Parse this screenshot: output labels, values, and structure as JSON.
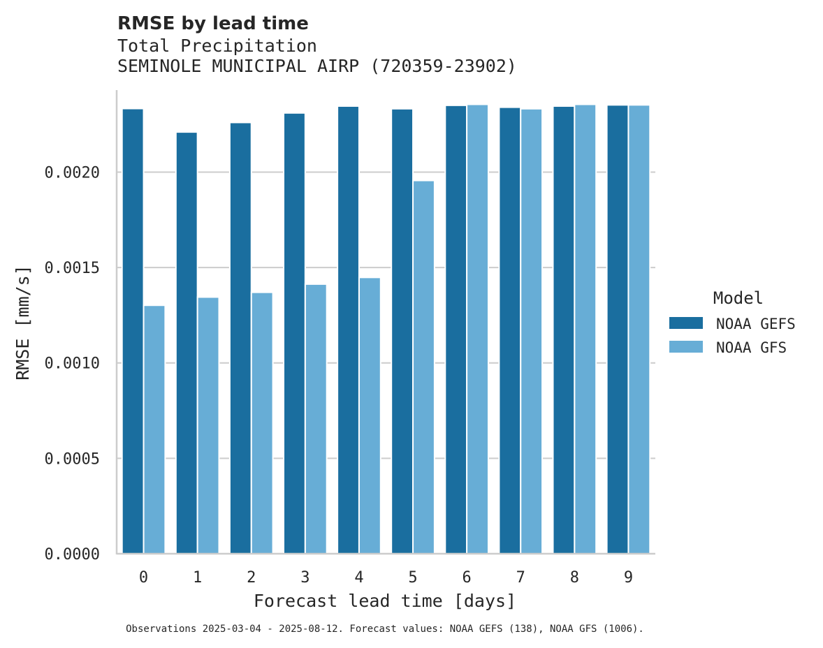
{
  "chart_data": {
    "type": "bar",
    "title": "RMSE by lead time",
    "subtitle_lines": [
      "Total Precipitation",
      "SEMINOLE MUNICIPAL AIRP (720359-23902)"
    ],
    "xlabel": "Forecast lead time [days]",
    "ylabel": "RMSE [mm/s]",
    "categories": [
      "0",
      "1",
      "2",
      "3",
      "4",
      "5",
      "6",
      "7",
      "8",
      "9"
    ],
    "ylim": [
      0,
      0.00243
    ],
    "yticks": [
      0.0,
      0.0005,
      0.001,
      0.0015,
      0.002
    ],
    "ytick_labels": [
      "0.0000",
      "0.0005",
      "0.0010",
      "0.0015",
      "0.0020"
    ],
    "grid": "horizontal",
    "legend": {
      "title": "Model",
      "position": "right-center"
    },
    "series": [
      {
        "name": "NOAA GEFS",
        "color": "#1a6e9f",
        "values": [
          0.002333,
          0.00221,
          0.00226,
          0.00231,
          0.002346,
          0.002332,
          0.00235,
          0.00234,
          0.002346,
          0.002352
        ]
      },
      {
        "name": "NOAA GFS",
        "color": "#67add6",
        "values": [
          0.001302,
          0.001345,
          0.00137,
          0.001413,
          0.001448,
          0.001956,
          0.002355,
          0.002332,
          0.002355,
          0.002352
        ]
      }
    ],
    "footnote": "Observations 2025-03-04 - 2025-08-12. Forecast values: NOAA GEFS (138), NOAA GFS (1006)."
  }
}
